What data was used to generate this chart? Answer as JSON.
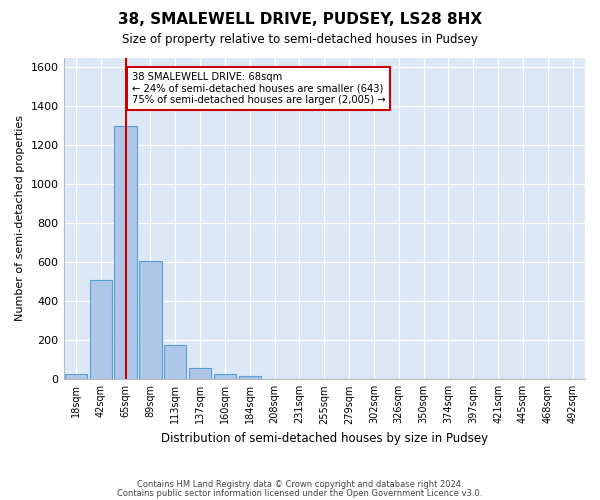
{
  "title1": "38, SMALEWELL DRIVE, PUDSEY, LS28 8HX",
  "title2": "Size of property relative to semi-detached houses in Pudsey",
  "xlabel": "Distribution of semi-detached houses by size in Pudsey",
  "ylabel": "Number of semi-detached properties",
  "footnote1": "Contains HM Land Registry data © Crown copyright and database right 2024.",
  "footnote2": "Contains public sector information licensed under the Open Government Licence v3.0.",
  "bin_labels": [
    "18sqm",
    "42sqm",
    "65sqm",
    "89sqm",
    "113sqm",
    "137sqm",
    "160sqm",
    "184sqm",
    "208sqm",
    "231sqm",
    "255sqm",
    "279sqm",
    "302sqm",
    "326sqm",
    "350sqm",
    "374sqm",
    "397sqm",
    "421sqm",
    "445sqm",
    "468sqm",
    "492sqm"
  ],
  "bar_values": [
    28,
    510,
    1300,
    605,
    175,
    57,
    28,
    18,
    0,
    0,
    0,
    0,
    0,
    0,
    0,
    0,
    0,
    0,
    0,
    0,
    0
  ],
  "bar_color": "#aec6e8",
  "bar_edgecolor": "#5a9fd4",
  "property_bin_index": 2,
  "property_label": "38 SMALEWELL DRIVE: 68sqm",
  "pct_smaller": 24,
  "n_smaller": 643,
  "pct_larger": 75,
  "n_larger": 2005,
  "vline_color": "#cc0000",
  "annotation_box_edgecolor": "#cc0000",
  "background_color": "#dce8f5",
  "ylim": [
    0,
    1650
  ],
  "yticks": [
    0,
    200,
    400,
    600,
    800,
    1000,
    1200,
    1400,
    1600
  ]
}
